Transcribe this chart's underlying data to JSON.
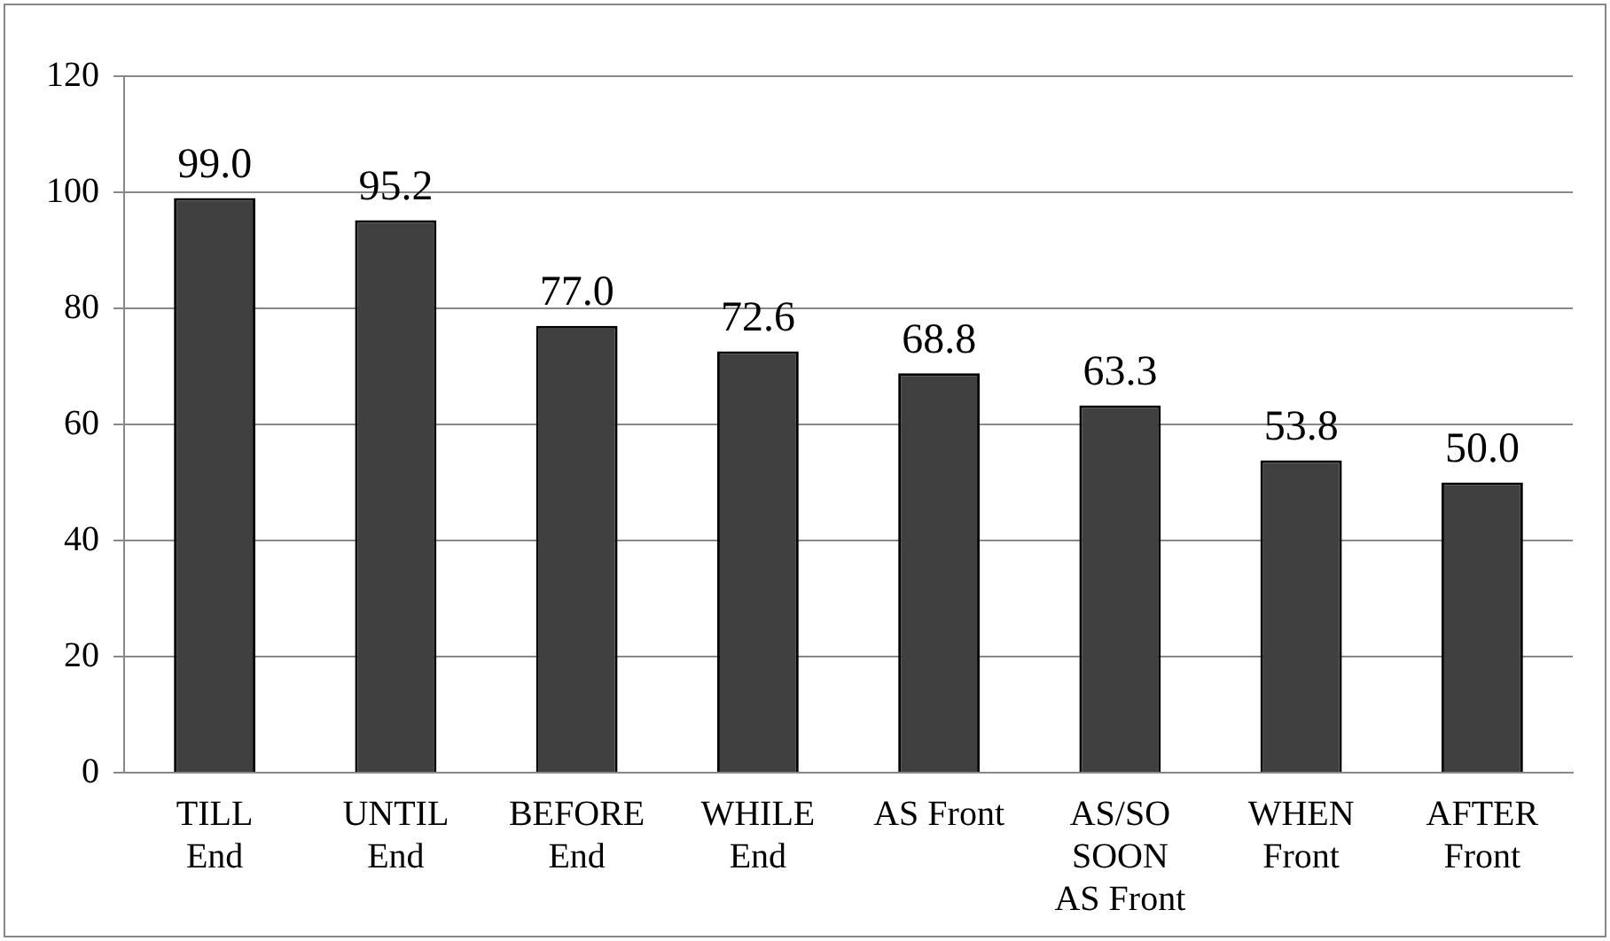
{
  "chart_data": {
    "type": "bar",
    "categories": [
      "TILL\nEnd",
      "UNTIL\nEnd",
      "BEFORE\nEnd",
      "WHILE\nEnd",
      "AS Front",
      "AS/SO\nSOON\nAS Front",
      "WHEN\nFront",
      "AFTER\nFront"
    ],
    "values": [
      99.0,
      95.2,
      77.0,
      72.6,
      68.8,
      63.3,
      53.8,
      50.0
    ],
    "value_labels": [
      "99.0",
      "95.2",
      "77.0",
      "72.6",
      "68.8",
      "63.3",
      "53.8",
      "50.0"
    ],
    "color": "#404040",
    "ylim": [
      0,
      120
    ],
    "yticks": [
      0,
      20,
      40,
      60,
      80,
      100,
      120
    ],
    "grid": "y"
  }
}
